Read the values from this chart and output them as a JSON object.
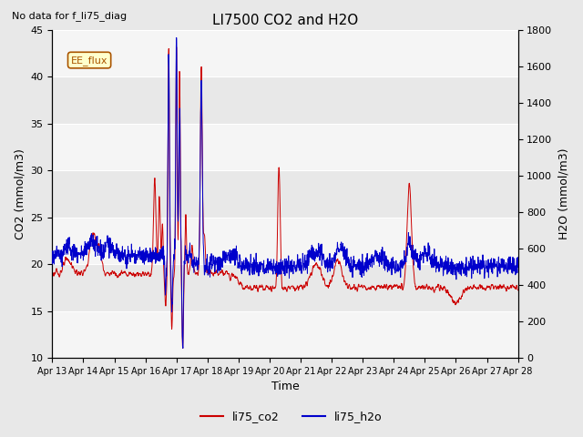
{
  "title": "LI7500 CO2 and H2O",
  "subtitle": "No data for f_li75_diag",
  "xlabel": "Time",
  "ylabel_left": "CO2 (mmol/m3)",
  "ylabel_right": "H2O (mmol/m3)",
  "ylim_left": [
    10,
    45
  ],
  "ylim_right": [
    0,
    1800
  ],
  "yticks_left": [
    10,
    15,
    20,
    25,
    30,
    35,
    40,
    45
  ],
  "yticks_right": [
    0,
    200,
    400,
    600,
    800,
    1000,
    1200,
    1400,
    1600,
    1800
  ],
  "co2_color": "#cc0000",
  "h2o_color": "#0000cc",
  "legend_entries": [
    "li75_co2",
    "li75_h2o"
  ],
  "figure_bg": "#e8e8e8",
  "plot_bg": "#e8e8e8",
  "band_color_light": "#f0f0f0",
  "band_color_dark": "#e0e0e0",
  "annotation_box": "EE_flux",
  "n_points": 2000,
  "x_start": 13.0,
  "x_end": 28.0,
  "xtick_labels": [
    "Apr 13",
    "Apr 14",
    "Apr 15",
    "Apr 16",
    "Apr 17",
    "Apr 18",
    "Apr 19",
    "Apr 20",
    "Apr 21",
    "Apr 22",
    "Apr 23",
    "Apr 24",
    "Apr 25",
    "Apr 26",
    "Apr 27",
    "Apr 28"
  ],
  "xtick_positions": [
    13,
    14,
    15,
    16,
    17,
    18,
    19,
    20,
    21,
    22,
    23,
    24,
    25,
    26,
    27,
    28
  ]
}
